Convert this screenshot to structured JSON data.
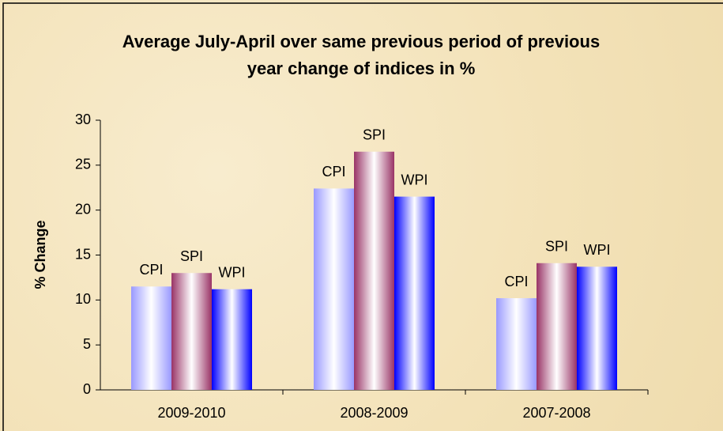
{
  "chart_data": {
    "type": "bar",
    "title": "Average July-April over same previous period of previous year change of indices in %",
    "y_label": "% Change",
    "categories": [
      "2009-2010",
      "2008-2009",
      "2007-2008"
    ],
    "series": [
      {
        "name": "CPI",
        "color": "#9999ff",
        "values": [
          11.5,
          22.4,
          10.2
        ]
      },
      {
        "name": "SPI",
        "color": "#993366",
        "values": [
          13.0,
          26.5,
          14.1
        ]
      },
      {
        "name": "WPI",
        "color": "#0000ff",
        "values": [
          11.2,
          21.5,
          13.7
        ]
      }
    ],
    "ylim": [
      0,
      30
    ],
    "yticks": [
      0,
      5,
      10,
      15,
      20,
      25,
      30
    ],
    "grid": false
  }
}
